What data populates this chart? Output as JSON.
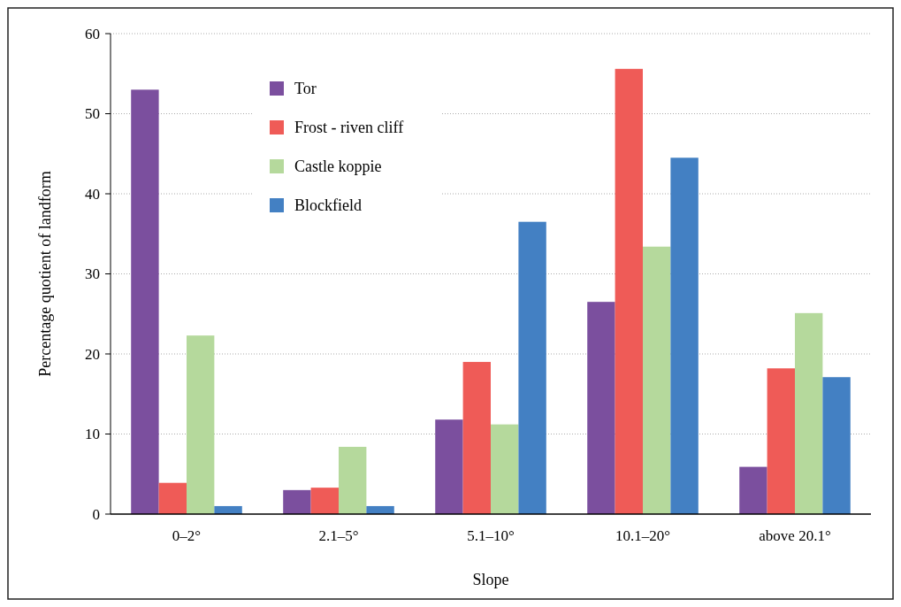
{
  "chart_data": {
    "type": "bar",
    "xlabel": "Slope",
    "ylabel": "Percentage quotient of landform",
    "categories": [
      "0–2°",
      "2.1–5°",
      "5.1–10°",
      "10.1–20°",
      "above 20.1°"
    ],
    "series": [
      {
        "name": "Tor",
        "color": "#7b4f9e",
        "values": [
          53.0,
          3.0,
          11.8,
          26.5,
          5.9
        ]
      },
      {
        "name": "Frost - riven cliff",
        "color": "#ef5b57",
        "values": [
          3.9,
          3.3,
          19.0,
          55.6,
          18.2
        ]
      },
      {
        "name": "Castle koppie",
        "color": "#b5d99c",
        "values": [
          22.3,
          8.4,
          11.2,
          33.4,
          25.1
        ]
      },
      {
        "name": "Blockfield",
        "color": "#4380c3",
        "values": [
          1.0,
          1.0,
          36.5,
          44.5,
          17.1
        ]
      }
    ],
    "ylim": [
      0,
      60
    ],
    "yticks": [
      0,
      10,
      20,
      30,
      40,
      50,
      60
    ],
    "grid": "y",
    "legend": "top left"
  }
}
